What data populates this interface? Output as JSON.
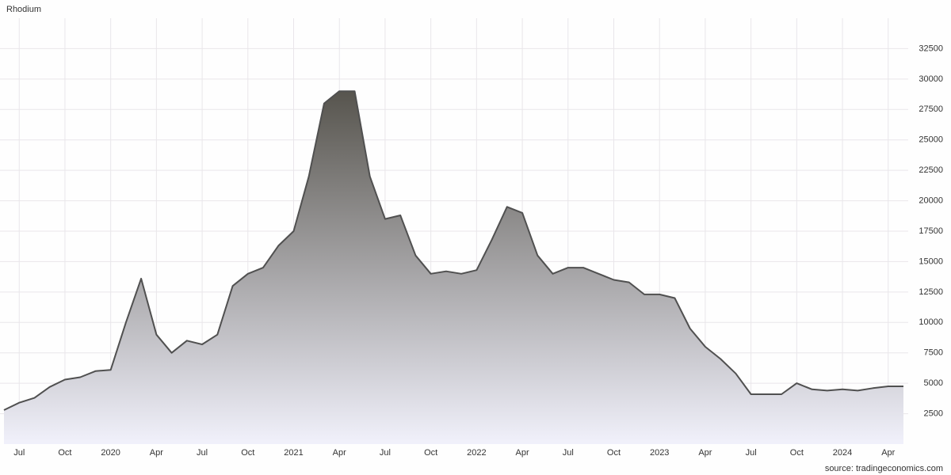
{
  "chart_data": {
    "type": "area",
    "title": "Rhodium",
    "source": "source: tradingeconomics.com",
    "x": [
      "2019-06",
      "2019-07",
      "2019-08",
      "2019-09",
      "2019-10",
      "2019-11",
      "2019-12",
      "2020-01",
      "2020-02",
      "2020-03",
      "2020-04",
      "2020-05",
      "2020-06",
      "2020-07",
      "2020-08",
      "2020-09",
      "2020-10",
      "2020-11",
      "2020-12",
      "2021-01",
      "2021-02",
      "2021-03",
      "2021-04",
      "2021-05",
      "2021-06",
      "2021-07",
      "2021-08",
      "2021-09",
      "2021-10",
      "2021-11",
      "2021-12",
      "2022-01",
      "2022-02",
      "2022-03",
      "2022-04",
      "2022-05",
      "2022-06",
      "2022-07",
      "2022-08",
      "2022-09",
      "2022-10",
      "2022-11",
      "2022-12",
      "2023-01",
      "2023-02",
      "2023-03",
      "2023-04",
      "2023-05",
      "2023-06",
      "2023-07",
      "2023-08",
      "2023-09",
      "2023-10",
      "2023-11",
      "2023-12",
      "2024-01",
      "2024-02",
      "2024-03",
      "2024-04",
      "2024-05"
    ],
    "values": [
      2800,
      3400,
      3800,
      4700,
      5300,
      5500,
      6000,
      6100,
      10000,
      13600,
      9000,
      7500,
      8500,
      8200,
      9000,
      13000,
      14000,
      14500,
      16300,
      17500,
      22000,
      28000,
      29000,
      29000,
      22000,
      18500,
      18800,
      15500,
      14000,
      14200,
      14000,
      14300,
      16800,
      19500,
      19000,
      15500,
      14000,
      14500,
      14500,
      14000,
      13500,
      13300,
      12300,
      12300,
      12000,
      9500,
      8000,
      7000,
      5800,
      4100,
      4100,
      4100,
      5000,
      4500,
      4400,
      4500,
      4400,
      4600,
      4750,
      4750
    ],
    "color": "#505050",
    "fill_gradient": [
      "#37342a",
      "#f1f1fb"
    ],
    "xlim": [
      "2019-06",
      "2024-05"
    ],
    "xticks": [
      {
        "value": "2019-07",
        "label": "Jul"
      },
      {
        "value": "2019-10",
        "label": "Oct"
      },
      {
        "value": "2020-01",
        "label": "2020"
      },
      {
        "value": "2020-04",
        "label": "Apr"
      },
      {
        "value": "2020-07",
        "label": "Jul"
      },
      {
        "value": "2020-10",
        "label": "Oct"
      },
      {
        "value": "2021-01",
        "label": "2021"
      },
      {
        "value": "2021-04",
        "label": "Apr"
      },
      {
        "value": "2021-07",
        "label": "Jul"
      },
      {
        "value": "2021-10",
        "label": "Oct"
      },
      {
        "value": "2022-01",
        "label": "2022"
      },
      {
        "value": "2022-04",
        "label": "Apr"
      },
      {
        "value": "2022-07",
        "label": "Jul"
      },
      {
        "value": "2022-10",
        "label": "Oct"
      },
      {
        "value": "2023-01",
        "label": "2023"
      },
      {
        "value": "2023-04",
        "label": "Apr"
      },
      {
        "value": "2023-07",
        "label": "Jul"
      },
      {
        "value": "2023-10",
        "label": "Oct"
      },
      {
        "value": "2024-01",
        "label": "2024"
      },
      {
        "value": "2024-04",
        "label": "Apr"
      }
    ],
    "ylim": [
      0,
      35000
    ],
    "yticks": [
      2500,
      5000,
      7500,
      10000,
      12500,
      15000,
      17500,
      20000,
      22500,
      25000,
      27500,
      30000,
      32500
    ],
    "grid": true
  }
}
